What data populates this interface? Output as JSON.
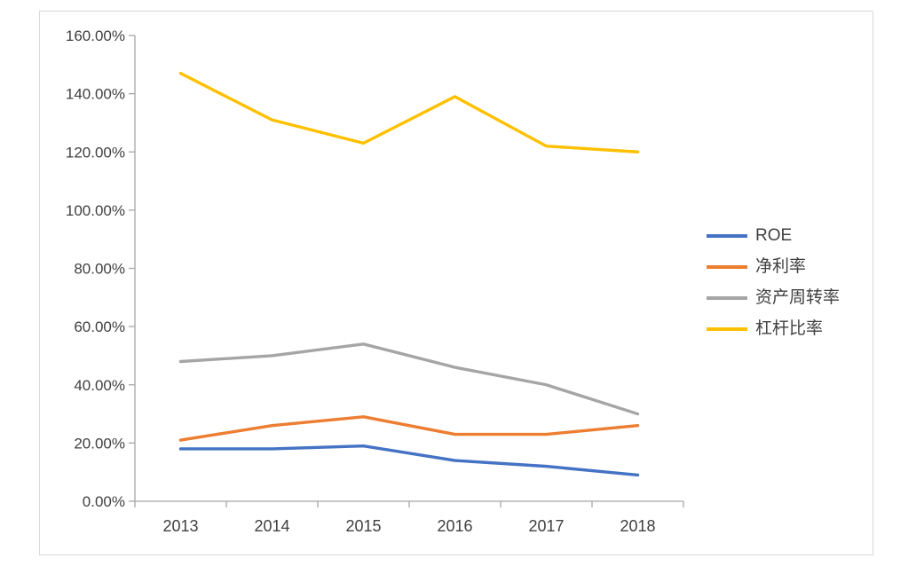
{
  "page": {
    "background_color": "#ffffff",
    "frame_border_color": "#d9d9d9"
  },
  "chart_data": {
    "type": "line",
    "title": "",
    "xlabel": "",
    "ylabel": "",
    "categories": [
      "2013",
      "2014",
      "2015",
      "2016",
      "2017",
      "2018"
    ],
    "series": [
      {
        "name": "ROE",
        "color": "#4472C4",
        "values": [
          18,
          18,
          19,
          14,
          12,
          9
        ]
      },
      {
        "name": "净利率",
        "color": "#ED7D31",
        "values": [
          21,
          26,
          29,
          23,
          23,
          26
        ]
      },
      {
        "name": "资产周转率",
        "color": "#A5A5A5",
        "values": [
          48,
          50,
          54,
          46,
          40,
          30
        ]
      },
      {
        "name": "杠杆比率",
        "color": "#FFC000",
        "values": [
          147,
          131,
          123,
          139,
          122,
          120
        ]
      }
    ],
    "ylim": [
      0,
      160
    ],
    "ytick_step": 20,
    "ytick_labels": [
      "0.00%",
      "20.00%",
      "40.00%",
      "60.00%",
      "80.00%",
      "100.00%",
      "120.00%",
      "140.00%",
      "160.00%"
    ],
    "grid": false,
    "legend_position": "right",
    "axis_color": "#a6a6a6",
    "tick_label_color": "#404040"
  }
}
